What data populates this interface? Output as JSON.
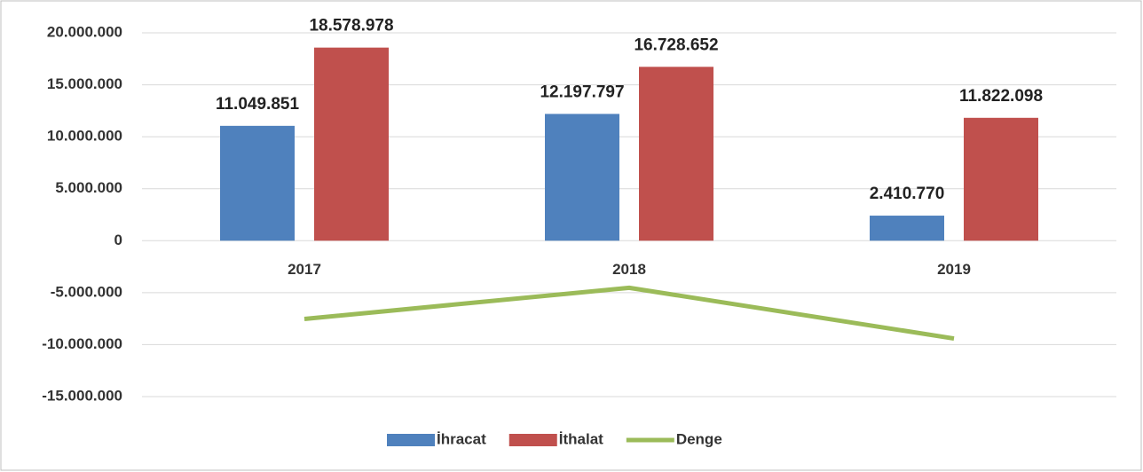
{
  "chart_data": {
    "type": "bar",
    "categories": [
      "2017",
      "2018",
      "2019"
    ],
    "series": [
      {
        "name": "İhracat",
        "color": "#4f81bd",
        "type": "bar",
        "values": [
          11049851,
          12197797,
          2410770
        ],
        "value_labels": [
          "11.049.851",
          "12.197.797",
          "2.410.770"
        ]
      },
      {
        "name": "İthalat",
        "color": "#c0504d",
        "type": "bar",
        "values": [
          18578978,
          16728652,
          11822098
        ],
        "value_labels": [
          "18.578.978",
          "16.728.652",
          "11.822.098"
        ]
      },
      {
        "name": "Denge",
        "color": "#9bbb59",
        "type": "line",
        "values": [
          -7529127,
          -4530855,
          -9411328
        ]
      }
    ],
    "ylim": [
      -15000000,
      20000000
    ],
    "yticks": [
      {
        "value": -15000000,
        "label": "-15.000.000"
      },
      {
        "value": -10000000,
        "label": "-10.000.000"
      },
      {
        "value": -5000000,
        "label": "-5.000.000"
      },
      {
        "value": 0,
        "label": "0"
      },
      {
        "value": 5000000,
        "label": "5.000.000"
      },
      {
        "value": 10000000,
        "label": "10.000.000"
      },
      {
        "value": 15000000,
        "label": "15.000.000"
      },
      {
        "value": 20000000,
        "label": "20.000.000"
      }
    ],
    "grid": true,
    "legend": "bottom"
  }
}
